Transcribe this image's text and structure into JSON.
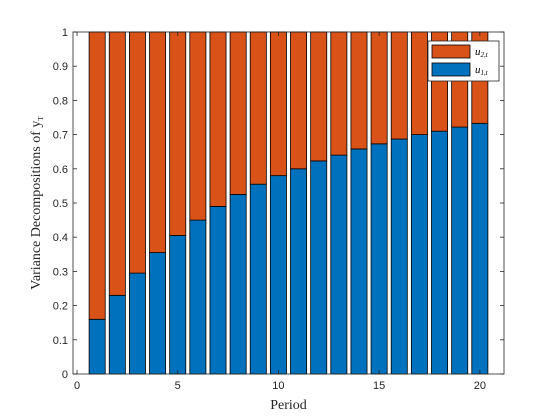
{
  "chart_data": {
    "type": "bar",
    "stacked": true,
    "x": [
      1,
      2,
      3,
      4,
      5,
      6,
      7,
      8,
      9,
      10,
      11,
      12,
      13,
      14,
      15,
      16,
      17,
      18,
      19,
      20
    ],
    "series": [
      {
        "name_main": "u",
        "name_sub": "1,t",
        "color": "#0072BD",
        "values": [
          0.16,
          0.23,
          0.295,
          0.355,
          0.405,
          0.45,
          0.49,
          0.525,
          0.555,
          0.58,
          0.6,
          0.623,
          0.64,
          0.658,
          0.673,
          0.687,
          0.7,
          0.71,
          0.722,
          0.733
        ]
      },
      {
        "name_main": "u",
        "name_sub": "2,t",
        "color": "#D95319",
        "values": [
          0.84,
          0.77,
          0.705,
          0.645,
          0.595,
          0.55,
          0.51,
          0.475,
          0.445,
          0.42,
          0.4,
          0.377,
          0.36,
          0.342,
          0.327,
          0.313,
          0.3,
          0.29,
          0.278,
          0.267
        ]
      }
    ],
    "xlabel": "Period",
    "ylabel_main": "Variance Decompositions of y",
    "ylabel_sub": "T",
    "xlim": [
      -0.2,
      21.2
    ],
    "ylim": [
      0,
      1
    ],
    "xticks": [
      0,
      5,
      10,
      15,
      20
    ],
    "yticks": [
      0,
      0.1,
      0.2,
      0.3,
      0.4,
      0.5,
      0.6,
      0.7,
      0.8,
      0.9,
      1
    ],
    "ytick_labels": [
      "0",
      "0.1",
      "0.2",
      "0.3",
      "0.4",
      "0.5",
      "0.6",
      "0.7",
      "0.8",
      "0.9",
      "1"
    ],
    "xtick_labels": [
      "0",
      "5",
      "10",
      "15",
      "20"
    ],
    "legend_position": "top-right",
    "legend_order": [
      1,
      0
    ]
  }
}
